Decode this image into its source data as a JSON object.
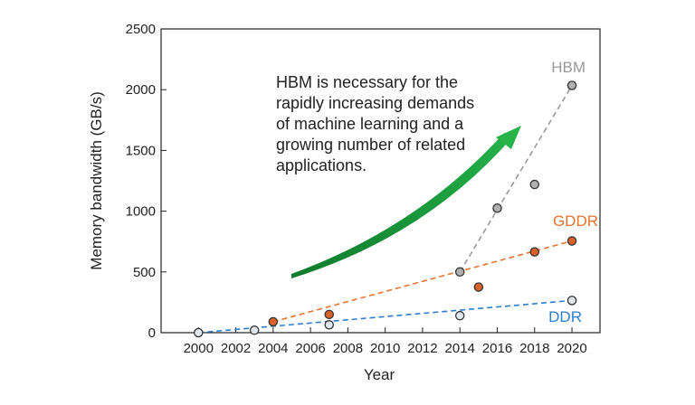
{
  "chart_data": {
    "type": "scatter",
    "title": "",
    "xlabel": "Year",
    "ylabel": "Memory bandwidth (GB/s)",
    "xlim": [
      1998,
      2021.5
    ],
    "ylim": [
      0,
      2500
    ],
    "xticks": [
      2000,
      2002,
      2004,
      2006,
      2008,
      2010,
      2012,
      2014,
      2016,
      2018,
      2020
    ],
    "yticks": [
      0,
      500,
      1000,
      1500,
      2000,
      2500
    ],
    "grid": false,
    "legend": "series labels placed next to trend lines",
    "series": [
      {
        "name": "HBM",
        "color": "#999999",
        "marker_fill": "#b0b0b0",
        "points": [
          {
            "x": 2014,
            "y": 500
          },
          {
            "x": 2016,
            "y": 1025
          },
          {
            "x": 2018,
            "y": 1220
          },
          {
            "x": 2020,
            "y": 2035
          }
        ],
        "trend": {
          "from": [
            2014,
            500
          ],
          "to": [
            2020,
            2035
          ]
        }
      },
      {
        "name": "GDDR",
        "color": "#e8732e",
        "marker_fill": "#d9622b",
        "points": [
          {
            "x": 2004,
            "y": 90
          },
          {
            "x": 2007,
            "y": 150
          },
          {
            "x": 2015,
            "y": 375
          },
          {
            "x": 2018,
            "y": 665
          },
          {
            "x": 2020,
            "y": 755
          }
        ],
        "trend": {
          "from": [
            2004,
            90
          ],
          "to": [
            2020,
            755
          ]
        }
      },
      {
        "name": "DDR",
        "color": "#2b7fd1",
        "marker_fill": "#dfe6ee",
        "points": [
          {
            "x": 2000,
            "y": 0
          },
          {
            "x": 2003,
            "y": 20
          },
          {
            "x": 2007,
            "y": 65
          },
          {
            "x": 2014,
            "y": 140
          },
          {
            "x": 2020,
            "y": 265
          }
        ],
        "trend": {
          "from": [
            2000,
            0
          ],
          "to": [
            2020,
            265
          ]
        }
      }
    ],
    "annotation": {
      "lines": [
        "HBM is necessary for the",
        "rapidly increasing demands",
        "of machine learning and a",
        "growing number of related",
        "applications."
      ],
      "arrow_color": "#1a9a3c"
    }
  }
}
